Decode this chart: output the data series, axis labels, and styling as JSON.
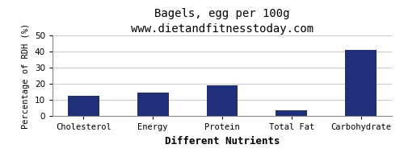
{
  "title": "Bagels, egg per 100g",
  "subtitle": "www.dietandfitnesstoday.com",
  "xlabel": "Different Nutrients",
  "ylabel": "Percentage of RDH (%)",
  "categories": [
    "Cholesterol",
    "Energy",
    "Protein",
    "Total Fat",
    "Carbohydrate"
  ],
  "values": [
    12.5,
    14.5,
    19.0,
    3.5,
    41.0
  ],
  "bar_color": "#1f2f7a",
  "ylim": [
    0,
    50
  ],
  "yticks": [
    0,
    10,
    20,
    30,
    40,
    50
  ],
  "background_color": "#ffffff",
  "grid_color": "#cccccc",
  "title_fontsize": 10,
  "subtitle_fontsize": 9,
  "xlabel_fontsize": 9,
  "ylabel_fontsize": 7.5,
  "tick_fontsize": 7.5
}
